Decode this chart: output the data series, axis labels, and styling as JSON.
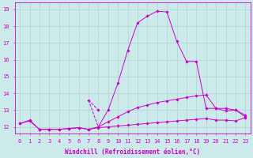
{
  "xlabel": "Windchill (Refroidissement éolien,°C)",
  "ylabel": "",
  "bg_color": "#cceaea",
  "line_color": "#cc00cc",
  "grid_color": "#aacccc",
  "x": [
    0,
    1,
    2,
    3,
    4,
    5,
    6,
    7,
    8,
    9,
    10,
    11,
    12,
    13,
    14,
    15,
    16,
    17,
    18,
    19,
    20,
    21,
    22,
    23
  ],
  "line1_bottom": [
    12.2,
    12.35,
    11.85,
    11.85,
    11.85,
    11.9,
    11.95,
    11.85,
    11.95,
    12.0,
    12.05,
    12.1,
    12.15,
    12.2,
    12.25,
    12.3,
    12.35,
    12.4,
    12.45,
    12.5,
    12.4,
    12.4,
    12.35,
    12.55
  ],
  "line2_middle": [
    12.2,
    12.4,
    11.85,
    11.85,
    11.85,
    11.9,
    11.95,
    11.85,
    12.0,
    12.3,
    12.6,
    12.9,
    13.15,
    13.3,
    13.45,
    13.55,
    13.65,
    13.75,
    13.85,
    13.9,
    13.1,
    13.1,
    13.0,
    12.7
  ],
  "line3_main": [
    null,
    null,
    null,
    null,
    null,
    null,
    null,
    null,
    12.0,
    13.0,
    14.6,
    16.55,
    18.2,
    18.6,
    18.9,
    18.85,
    17.1,
    15.9,
    15.9,
    13.1,
    13.1,
    12.95,
    13.0,
    12.6
  ],
  "line4_early": [
    null,
    null,
    null,
    null,
    null,
    null,
    null,
    13.6,
    13.0,
    null,
    null,
    null,
    null,
    null,
    null,
    null,
    null,
    null,
    null,
    null,
    null,
    null,
    null,
    null
  ],
  "ylim": [
    11.6,
    19.4
  ],
  "xlim": [
    -0.5,
    23.5
  ],
  "yticks": [
    12,
    13,
    14,
    15,
    16,
    17,
    18,
    19
  ],
  "xtick_labels": [
    "0",
    "1",
    "2",
    "3",
    "4",
    "5",
    "6",
    "7",
    "8",
    "9",
    "10",
    "11",
    "12",
    "13",
    "14",
    "15",
    "16",
    "17",
    "18",
    "19",
    "20",
    "21",
    "22",
    "23"
  ],
  "title_fontsize": 6.5,
  "axis_fontsize": 5.5,
  "tick_fontsize": 5.0
}
